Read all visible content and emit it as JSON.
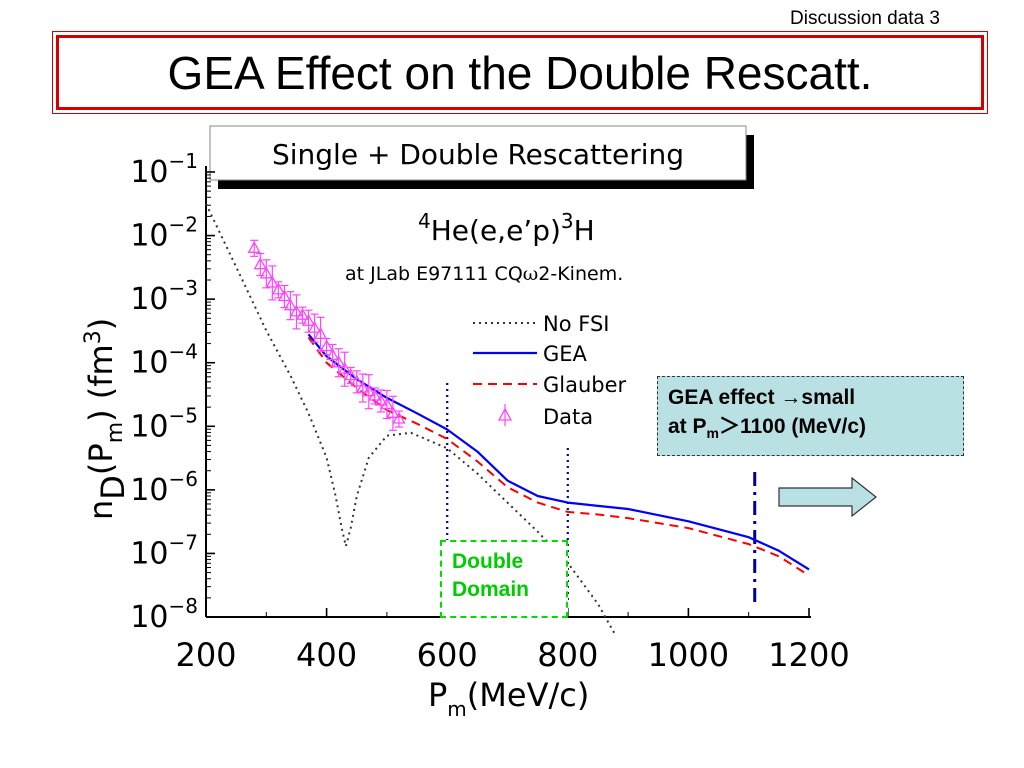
{
  "header_note": "Discussion data 3",
  "slide_title": "GEA Effect on the Double Rescatt.",
  "chart_data": {
    "type": "line",
    "title": "Single + Double Rescattering",
    "reaction_parts": [
      "4",
      "He(e,e’p)",
      "3",
      "H"
    ],
    "kinematics_parts": [
      "at JLab E97111 CQ",
      "ω",
      "2-Kinem."
    ],
    "xlabel_parts": [
      "P",
      "m",
      "(MeV/c)"
    ],
    "ylabel_parts": [
      "n",
      "D",
      "(P",
      "m",
      ") (fm",
      "3",
      ")"
    ],
    "xlim": [
      200,
      1200
    ],
    "ylim_log10": [
      -8,
      -1
    ],
    "yscale": "log",
    "grid": false,
    "legend_placement": "top-right",
    "x_ticks": [
      "200",
      "400",
      "600",
      "800",
      "1000",
      "1200"
    ],
    "y_ticks": [
      {
        "base": "10",
        "exp": "−1",
        "value": 0.1
      },
      {
        "base": "10",
        "exp": "−2",
        "value": 0.01
      },
      {
        "base": "10",
        "exp": "−3",
        "value": 0.001
      },
      {
        "base": "10",
        "exp": "−4",
        "value": 0.0001
      },
      {
        "base": "10",
        "exp": "−5",
        "value": 1e-05
      },
      {
        "base": "10",
        "exp": "−6",
        "value": 1e-06
      },
      {
        "base": "10",
        "exp": "−7",
        "value": 1e-07
      },
      {
        "base": "10",
        "exp": "−8",
        "value": 1e-08
      }
    ],
    "series": [
      {
        "name": "No FSI",
        "style": "dotted",
        "color": "#333333",
        "x": [
          200,
          250,
          300,
          340,
          370,
          400,
          415,
          425,
          432,
          440,
          450,
          470,
          500,
          540,
          600,
          650,
          700,
          750,
          800,
          850,
          880
        ],
        "y": [
          0.0316,
          0.0032,
          0.00032,
          6.3e-05,
          1.6e-05,
          3.2e-06,
          8e-07,
          2.5e-07,
          1.3e-07,
          2.5e-07,
          8e-07,
          3.2e-06,
          7.1e-06,
          7.9e-06,
          4.5e-06,
          1.8e-06,
          6.3e-07,
          2.2e-07,
          7.1e-08,
          1.6e-08,
          5e-09
        ]
      },
      {
        "name": "GEA",
        "style": "solid",
        "color": "#0000ff",
        "x": [
          370,
          400,
          450,
          500,
          550,
          600,
          650,
          700,
          750,
          800,
          850,
          900,
          1000,
          1100,
          1150,
          1200
        ],
        "y": [
          0.00028,
          0.000126,
          5.5e-05,
          2.8e-05,
          1.6e-05,
          8.9e-06,
          4e-06,
          1.4e-06,
          8e-07,
          6.3e-07,
          5.6e-07,
          5e-07,
          3.2e-07,
          1.8e-07,
          1.1e-07,
          5.6e-08
        ]
      },
      {
        "name": "Glauber",
        "style": "dashed",
        "color": "#ff0000",
        "x": [
          370,
          400,
          450,
          500,
          550,
          600,
          650,
          700,
          750,
          800,
          850,
          900,
          1000,
          1100,
          1150,
          1200
        ],
        "y": [
          0.00025,
          0.0001,
          4e-05,
          1.8e-05,
          1.1e-05,
          6.3e-06,
          2.8e-06,
          1.1e-06,
          6.3e-07,
          4.5e-07,
          4.1e-07,
          3.6e-07,
          2.5e-07,
          1.4e-07,
          9e-08,
          4.5e-08
        ]
      },
      {
        "name": "Data",
        "style": "markers",
        "color": "#ff44ff",
        "x": [
          280,
          290,
          300,
          310,
          320,
          330,
          340,
          350,
          360,
          370,
          380,
          390,
          400,
          410,
          420,
          430,
          440,
          450,
          460,
          470,
          480,
          490,
          500,
          510,
          520
        ],
        "y": [
          0.0063,
          0.0035,
          0.0025,
          0.0018,
          0.0014,
          0.0011,
          0.00079,
          0.00063,
          0.00056,
          0.00045,
          0.00035,
          0.00028,
          0.00018,
          0.00013,
          0.0001,
          7.9e-05,
          6.3e-05,
          5e-05,
          4e-05,
          3.5e-05,
          3e-05,
          2.5e-05,
          2.2e-05,
          1.6e-05,
          1.3e-05
        ]
      }
    ],
    "vertical_markers": [
      {
        "x": 600,
        "color": "#000099",
        "style": "dotted"
      },
      {
        "x": 800,
        "color": "#000099",
        "style": "dotted"
      },
      {
        "x": 1110,
        "color": "#000099",
        "style": "dashdot"
      }
    ]
  },
  "callout": {
    "line1": "GEA effect →small",
    "line2_prefix": "at P",
    "line2_sub": "m",
    "line2_suffix": "＞1100 (MeV/c)"
  },
  "domain_label": {
    "line1": "Double",
    "line2": "Domain"
  },
  "colors": {
    "title_border": "#d40000",
    "callout_bg": "#b9e0e3",
    "domain_border": "#00dd00",
    "arrow_fill": "#b9e0e3"
  }
}
